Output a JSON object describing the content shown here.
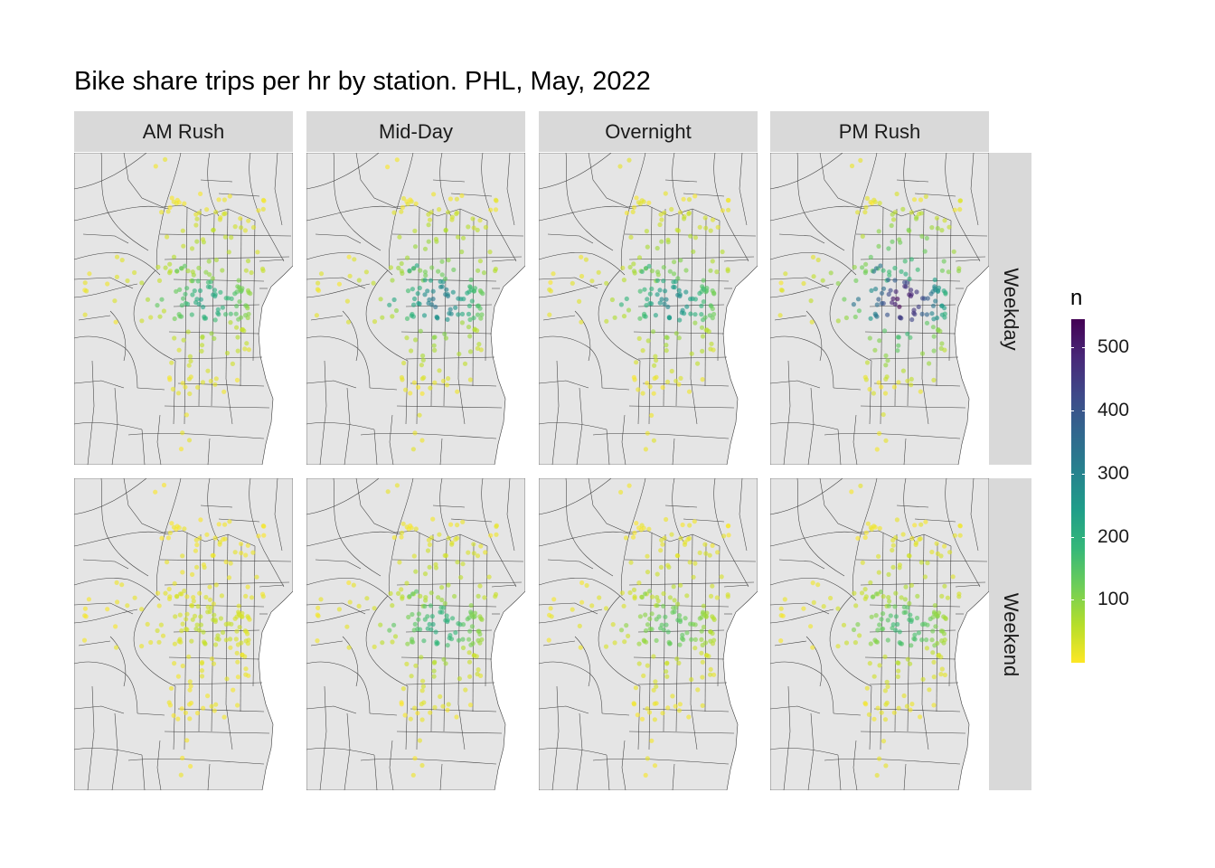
{
  "title": "Bike share trips per hr by station. PHL, May, 2022",
  "columns": [
    {
      "key": "am",
      "label": "AM Rush"
    },
    {
      "key": "mid",
      "label": "Mid-Day"
    },
    {
      "key": "over",
      "label": "Overnight"
    },
    {
      "key": "pm",
      "label": "PM Rush"
    }
  ],
  "rows": [
    {
      "key": "weekday",
      "label": "Weekday"
    },
    {
      "key": "weekend",
      "label": "Weekend"
    }
  ],
  "map": {
    "land_color": "#e5e5e5",
    "water_color": "#ffffff",
    "line_color": "#3d3d3d"
  },
  "legend": {
    "title": "n",
    "range": [
      0,
      545
    ],
    "ticks": [
      {
        "value": 100,
        "label": "100"
      },
      {
        "value": 200,
        "label": "200"
      },
      {
        "value": 300,
        "label": "300"
      },
      {
        "value": 400,
        "label": "400"
      },
      {
        "value": 500,
        "label": "500"
      }
    ],
    "colors": [
      "#fde725",
      "#b5de2b",
      "#6ece58",
      "#35b779",
      "#1f9e89",
      "#26828e",
      "#31688e",
      "#3e4989",
      "#482878",
      "#440154"
    ]
  },
  "panel_intensity": {
    "weekday": {
      "am": 0.28,
      "mid": 0.4,
      "over": 0.36,
      "pm": 0.66
    },
    "weekend": {
      "am": 0.06,
      "mid": 0.26,
      "over": 0.18,
      "pm": 0.22
    }
  }
}
